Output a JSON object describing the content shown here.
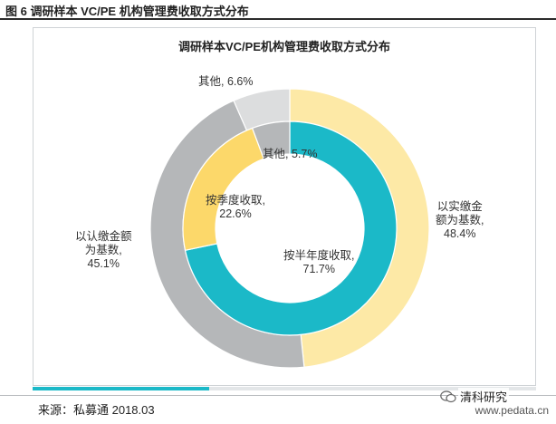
{
  "figure": {
    "title": "图 6 调研样本 VC/PE 机构管理费收取方式分布",
    "source": "来源：私募通 2018.03",
    "watermark": "www.pedata.cn",
    "brand": "清科研究"
  },
  "colors": {
    "teal": "#1bb9c8",
    "yellow": "#fcd86a",
    "light_yellow": "#fde9a6",
    "gray": "#b5b7b9",
    "light_gray": "#dcddde",
    "panel_border": "#cfd3d6"
  },
  "progress_fraction": 0.35,
  "chart_data": {
    "type": "pie",
    "title": "调研样本VC/PE机构管理费收取方式分布",
    "rings": [
      {
        "ring": "outer",
        "slices": [
          {
            "label": "以实缴金额为基数",
            "label_lines": [
              "以实缴金",
              "额为基数,",
              "48.4%"
            ],
            "value": 48.4,
            "color": "#fde9a6"
          },
          {
            "label": "以认缴金额为基数",
            "label_lines": [
              "以认缴金额",
              "为基数,",
              "45.1%"
            ],
            "value": 45.1,
            "color": "#b5b7b9"
          },
          {
            "label": "其他",
            "label_lines": [
              "其他, 6.6%"
            ],
            "value": 6.6,
            "color": "#dcddde"
          }
        ]
      },
      {
        "ring": "inner",
        "slices": [
          {
            "label": "按半年度收取",
            "label_lines": [
              "按半年度收取,",
              "71.7%"
            ],
            "value": 71.7,
            "color": "#1bb9c8"
          },
          {
            "label": "按季度收取",
            "label_lines": [
              "按季度收取,",
              "22.6%"
            ],
            "value": 22.6,
            "color": "#fcd86a"
          },
          {
            "label": "其他",
            "label_lines": [
              "其他, 5.7%"
            ],
            "value": 5.7,
            "color": "#b5b7b9"
          }
        ]
      }
    ]
  }
}
